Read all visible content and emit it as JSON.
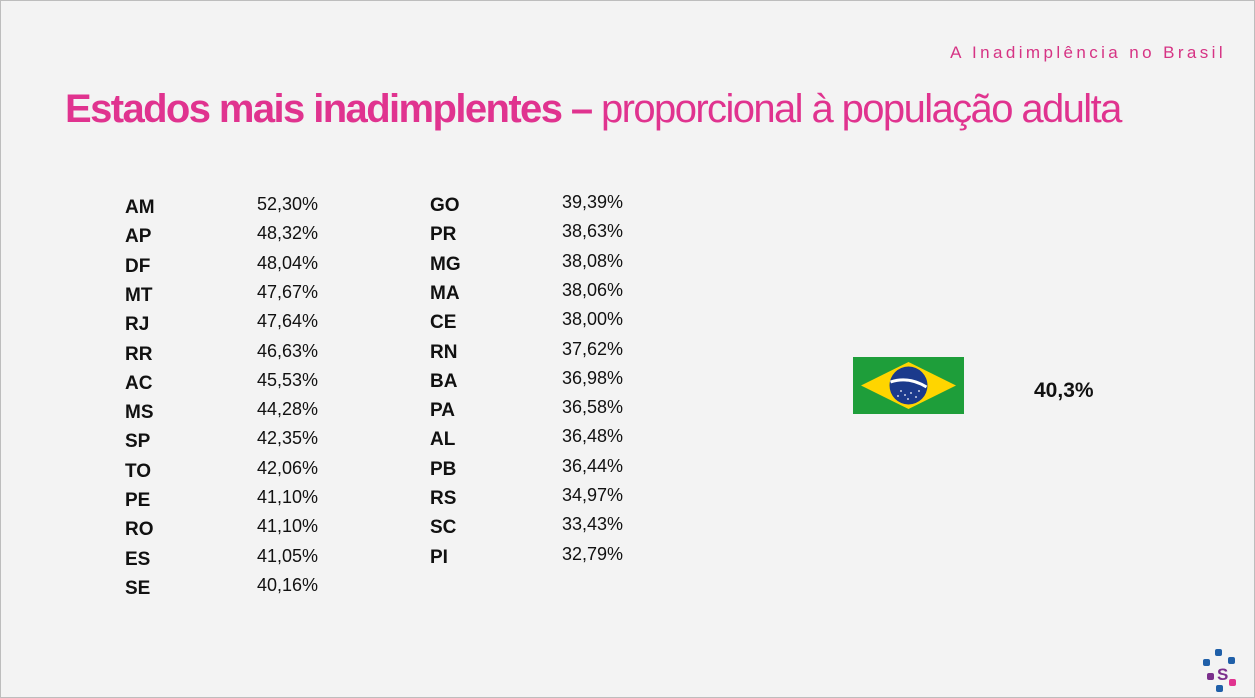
{
  "header": {
    "kicker": "A Inadimplência no Brasil",
    "title_bold": "Estados mais inadimplentes –",
    "title_light": " proporcional à população adulta"
  },
  "column_left": [
    {
      "state": "AM",
      "pct": "52,30%"
    },
    {
      "state": "AP",
      "pct": "48,32%"
    },
    {
      "state": "DF",
      "pct": "48,04%"
    },
    {
      "state": "MT",
      "pct": "47,67%"
    },
    {
      "state": "RJ",
      "pct": "47,64%"
    },
    {
      "state": "RR",
      "pct": "46,63%"
    },
    {
      "state": "AC",
      "pct": "45,53%"
    },
    {
      "state": "MS",
      "pct": "44,28%"
    },
    {
      "state": "SP",
      "pct": "42,35%"
    },
    {
      "state": "TO",
      "pct": "42,06%"
    },
    {
      "state": "PE",
      "pct": "41,10%"
    },
    {
      "state": "RO",
      "pct": "41,10%"
    },
    {
      "state": "ES",
      "pct": "41,05%"
    },
    {
      "state": "SE",
      "pct": "40,16%"
    }
  ],
  "column_right": [
    {
      "state": "GO",
      "pct": "39,39%"
    },
    {
      "state": "PR",
      "pct": "38,63%"
    },
    {
      "state": "MG",
      "pct": "38,08%"
    },
    {
      "state": "MA",
      "pct": "38,06%"
    },
    {
      "state": "CE",
      "pct": "38,00%"
    },
    {
      "state": "RN",
      "pct": "37,62%"
    },
    {
      "state": "BA",
      "pct": "36,98%"
    },
    {
      "state": "PA",
      "pct": "36,58%"
    },
    {
      "state": "AL",
      "pct": "36,48%"
    },
    {
      "state": "PB",
      "pct": "36,44%"
    },
    {
      "state": "RS",
      "pct": "34,97%"
    },
    {
      "state": "SC",
      "pct": "33,43%"
    },
    {
      "state": "PI",
      "pct": "32,79%"
    }
  ],
  "national": {
    "flag_icon": "brazil-flag-icon",
    "value": "40,3%"
  },
  "footer": {
    "logo_icon": "s-logo-icon",
    "logo_letter": "S"
  },
  "colors": {
    "accent": "#e0338f",
    "flag_green": "#1e9e3a",
    "flag_yellow": "#ffd500",
    "flag_blue": "#1b3a8c"
  }
}
